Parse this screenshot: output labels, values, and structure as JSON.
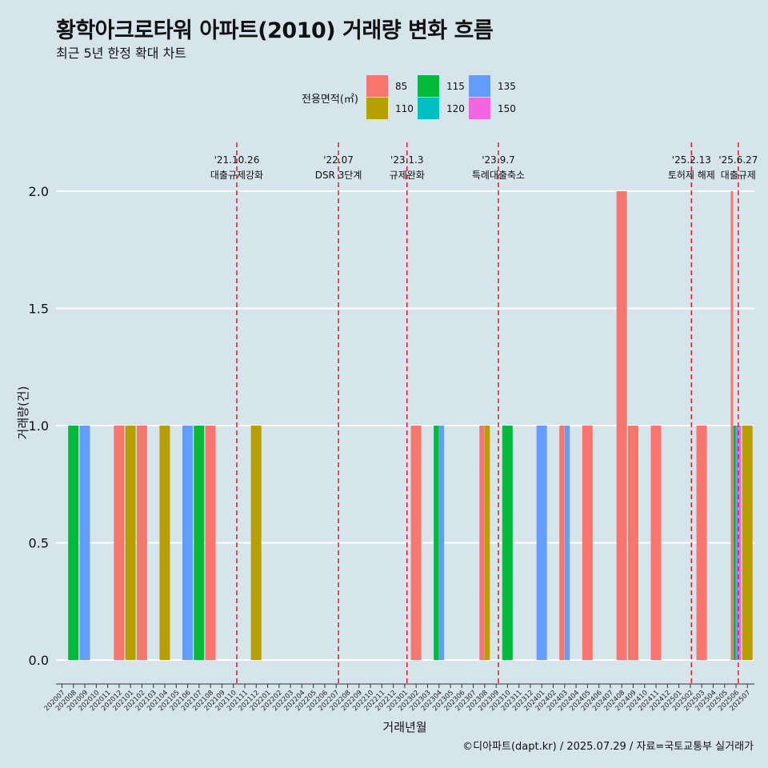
{
  "title": "황학아크로타워 아파트(2010) 거래량 변화 흐름",
  "subtitle": "최근 5년 한정 확대 차트",
  "caption": "©디아파트(dapt.kr) / 2025.07.29 / 자료=국토교통부 실거래가",
  "colors": {
    "background": "#d6e4eb",
    "grid": "#ffffff",
    "event_line": "#e31a1c",
    "85": "#f8766d",
    "110": "#b79f00",
    "115": "#00ba38",
    "120": "#00bfc4",
    "135": "#619cff",
    "150": "#f564e3"
  },
  "chart_data": {
    "type": "bar",
    "xlabel": "거래년월",
    "ylabel": "거래량(건)",
    "ylim": [
      0,
      2
    ],
    "y_ticks": [
      "0.0",
      "0.5",
      "1.0",
      "1.5",
      "2.0"
    ],
    "grid": true,
    "legend": {
      "title": "전용면적(㎡)",
      "placement": "top",
      "entries": [
        "85",
        "110",
        "115",
        "120",
        "135",
        "150"
      ]
    },
    "categories": [
      "202007",
      "202008",
      "202009",
      "202010",
      "202011",
      "202012",
      "202101",
      "202102",
      "202103",
      "202104",
      "202105",
      "202106",
      "202107",
      "202108",
      "202109",
      "202110",
      "202111",
      "202112",
      "202201",
      "202202",
      "202203",
      "202204",
      "202205",
      "202206",
      "202207",
      "202208",
      "202209",
      "202210",
      "202211",
      "202212",
      "202301",
      "202302",
      "202303",
      "202304",
      "202305",
      "202306",
      "202307",
      "202308",
      "202309",
      "202310",
      "202311",
      "202312",
      "202401",
      "202402",
      "202403",
      "202404",
      "202405",
      "202406",
      "202407",
      "202408",
      "202409",
      "202410",
      "202411",
      "202412",
      "202501",
      "202502",
      "202503",
      "202504",
      "202505",
      "202506",
      "202507"
    ],
    "bars": [
      {
        "month": "202008",
        "area": "115",
        "value": 1
      },
      {
        "month": "202009",
        "area": "135",
        "value": 1
      },
      {
        "month": "202012",
        "area": "85",
        "value": 1
      },
      {
        "month": "202101",
        "area": "110",
        "value": 1
      },
      {
        "month": "202102",
        "area": "85",
        "value": 1
      },
      {
        "month": "202104",
        "area": "110",
        "value": 1
      },
      {
        "month": "202106",
        "area": "135",
        "value": 1
      },
      {
        "month": "202107",
        "area": "115",
        "value": 1
      },
      {
        "month": "202108",
        "area": "85",
        "value": 1
      },
      {
        "month": "202112",
        "area": "110",
        "value": 1
      },
      {
        "month": "202302",
        "area": "85",
        "value": 1
      },
      {
        "month": "202304",
        "area": "115",
        "value": 1
      },
      {
        "month": "202304",
        "area": "135",
        "value": 1
      },
      {
        "month": "202308",
        "area": "85",
        "value": 1
      },
      {
        "month": "202308",
        "area": "110",
        "value": 1
      },
      {
        "month": "202310",
        "area": "115",
        "value": 1
      },
      {
        "month": "202401",
        "area": "135",
        "value": 1
      },
      {
        "month": "202403",
        "area": "85",
        "value": 1
      },
      {
        "month": "202403",
        "area": "135",
        "value": 1
      },
      {
        "month": "202405",
        "area": "85",
        "value": 1
      },
      {
        "month": "202408",
        "area": "85",
        "value": 2
      },
      {
        "month": "202409",
        "area": "85",
        "value": 1
      },
      {
        "month": "202411",
        "area": "85",
        "value": 1
      },
      {
        "month": "202503",
        "area": "85",
        "value": 1
      },
      {
        "month": "202506",
        "area": "85",
        "value": 2
      },
      {
        "month": "202506",
        "area": "115",
        "value": 1
      },
      {
        "month": "202506",
        "area": "135",
        "value": 1
      },
      {
        "month": "202506",
        "area": "150",
        "value": 1
      },
      {
        "month": "202507",
        "area": "110",
        "value": 1
      }
    ],
    "events": [
      {
        "date": "'21.10.26",
        "label": "대출규제강화",
        "x": 15.3
      },
      {
        "date": "'22.07",
        "label": "DSR 3단계",
        "x": 24.2
      },
      {
        "date": "'23.1.3",
        "label": "규제완화",
        "x": 30.2
      },
      {
        "date": "'23.9.7",
        "label": "특례대출축소",
        "x": 38.2
      },
      {
        "date": "'25.2.13",
        "label": "토허제 해제",
        "x": 55.1
      },
      {
        "date": "'25.6.27",
        "label": "대출규제",
        "x": 59.2
      }
    ]
  }
}
